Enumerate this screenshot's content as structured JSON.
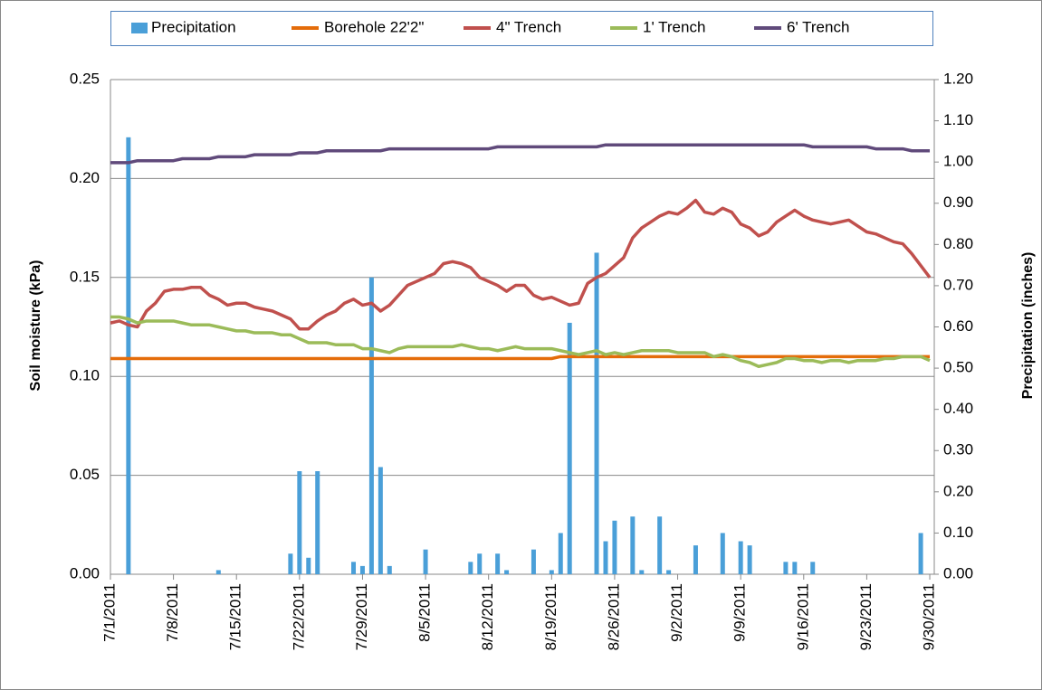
{
  "chart_data": {
    "type": "combo",
    "y_label": "Soil moisture (kPa)",
    "y2_label": "Precipitation (inches)",
    "categories": [
      "7/1/2011",
      null,
      null,
      null,
      null,
      null,
      null,
      "7/8/2011",
      null,
      null,
      null,
      null,
      null,
      null,
      "7/15/2011",
      null,
      null,
      null,
      null,
      null,
      null,
      "7/22/2011",
      null,
      null,
      null,
      null,
      null,
      null,
      "7/29/2011",
      null,
      null,
      null,
      null,
      null,
      null,
      "8/5/2011",
      null,
      null,
      null,
      null,
      null,
      null,
      "8/12/2011",
      null,
      null,
      null,
      null,
      null,
      null,
      "8/19/2011",
      null,
      null,
      null,
      null,
      null,
      null,
      "8/26/2011",
      null,
      null,
      null,
      null,
      null,
      null,
      "9/2/2011",
      null,
      null,
      null,
      null,
      null,
      null,
      "9/9/2011",
      null,
      null,
      null,
      null,
      null,
      null,
      "9/16/2011",
      null,
      null,
      null,
      null,
      null,
      null,
      "9/23/2011",
      null,
      null,
      null,
      null,
      null,
      null,
      "9/30/2011"
    ],
    "ylim": [
      0,
      0.25
    ],
    "yticks": [
      {
        "value": 0,
        "label": "0.00"
      },
      {
        "value": 0.05,
        "label": "0.05"
      },
      {
        "value": 0.1,
        "label": "0.10"
      },
      {
        "value": 0.15,
        "label": "0.15"
      },
      {
        "value": 0.2,
        "label": "0.20"
      },
      {
        "value": 0.25,
        "label": "0.25"
      }
    ],
    "y2lim": [
      0,
      1.2
    ],
    "y2ticks": [
      {
        "value": 0,
        "label": "0.00"
      },
      {
        "value": 0.1,
        "label": "0.10"
      },
      {
        "value": 0.2,
        "label": "0.20"
      },
      {
        "value": 0.3,
        "label": "0.30"
      },
      {
        "value": 0.4,
        "label": "0.40"
      },
      {
        "value": 0.5,
        "label": "0.50"
      },
      {
        "value": 0.6,
        "label": "0.60"
      },
      {
        "value": 0.7,
        "label": "0.70"
      },
      {
        "value": 0.8,
        "label": "0.80"
      },
      {
        "value": 0.9,
        "label": "0.90"
      },
      {
        "value": 1,
        "label": "1.00"
      },
      {
        "value": 1.1,
        "label": "1.10"
      },
      {
        "value": 1.2,
        "label": "1.20"
      }
    ],
    "grid": true,
    "legend": "top",
    "series": [
      {
        "name": "Precipitation",
        "type": "bar",
        "axis": "y2",
        "color": "#4a9fd8",
        "values": [
          0,
          0,
          1.06,
          0,
          0,
          0,
          0,
          0,
          0,
          0,
          0,
          0,
          0.01,
          0,
          0,
          0,
          0,
          0,
          0,
          0,
          0.05,
          0.25,
          0.04,
          0.25,
          0,
          0,
          0,
          0.03,
          0.02,
          0.72,
          0.26,
          0.02,
          0,
          0,
          0,
          0.06,
          0,
          0,
          0,
          0,
          0.03,
          0.05,
          0,
          0.05,
          0.01,
          0,
          0,
          0.06,
          0,
          0.01,
          0.1,
          0.61,
          0,
          0,
          0.78,
          0.08,
          0.13,
          0,
          0.14,
          0.01,
          0,
          0.14,
          0.01,
          0,
          0,
          0.07,
          0,
          0,
          0.1,
          0,
          0.08,
          0.07,
          0,
          0,
          0,
          0.03,
          0.03,
          0,
          0.03,
          0,
          0,
          0,
          0,
          0,
          0,
          0,
          0,
          0,
          0,
          0,
          0.1,
          0
        ]
      },
      {
        "name": "Borehole 22'2\"",
        "type": "line",
        "color": "#e46c0a",
        "values": [
          0.109,
          0.109,
          0.109,
          0.109,
          0.109,
          0.109,
          0.109,
          0.109,
          0.109,
          0.109,
          0.109,
          0.109,
          0.109,
          0.109,
          0.109,
          0.109,
          0.109,
          0.109,
          0.109,
          0.109,
          0.109,
          0.109,
          0.109,
          0.109,
          0.109,
          0.109,
          0.109,
          0.109,
          0.109,
          0.109,
          0.109,
          0.109,
          0.109,
          0.109,
          0.109,
          0.109,
          0.109,
          0.109,
          0.109,
          0.109,
          0.109,
          0.109,
          0.109,
          0.109,
          0.109,
          0.109,
          0.109,
          0.109,
          0.109,
          0.109,
          0.11,
          0.11,
          0.11,
          0.11,
          0.11,
          0.11,
          0.11,
          0.11,
          0.11,
          0.11,
          0.11,
          0.11,
          0.11,
          0.11,
          0.11,
          0.11,
          0.11,
          0.11,
          0.11,
          0.11,
          0.11,
          0.11,
          0.11,
          0.11,
          0.11,
          0.11,
          0.11,
          0.11,
          0.11,
          0.11,
          0.11,
          0.11,
          0.11,
          0.11,
          0.11,
          0.11,
          0.11,
          0.11,
          0.11,
          0.11,
          0.11,
          0.11
        ]
      },
      {
        "name": "4\" Trench",
        "type": "line",
        "color": "#c0504d",
        "values": [
          0.127,
          0.128,
          0.126,
          0.125,
          0.133,
          0.137,
          0.143,
          0.144,
          0.144,
          0.145,
          0.145,
          0.141,
          0.139,
          0.136,
          0.137,
          0.137,
          0.135,
          0.134,
          0.133,
          0.131,
          0.129,
          0.124,
          0.124,
          0.128,
          0.131,
          0.133,
          0.137,
          0.139,
          0.136,
          0.137,
          0.133,
          0.136,
          0.141,
          0.146,
          0.148,
          0.15,
          0.152,
          0.157,
          0.158,
          0.157,
          0.155,
          0.15,
          0.148,
          0.146,
          0.143,
          0.146,
          0.146,
          0.141,
          0.139,
          0.14,
          0.138,
          0.136,
          0.137,
          0.147,
          0.15,
          0.152,
          0.156,
          0.16,
          0.17,
          0.175,
          0.178,
          0.181,
          0.183,
          0.182,
          0.185,
          0.189,
          0.183,
          0.182,
          0.185,
          0.183,
          0.177,
          0.175,
          0.171,
          0.173,
          0.178,
          0.181,
          0.184,
          0.181,
          0.179,
          0.178,
          0.177,
          0.178,
          0.179,
          0.176,
          0.173,
          0.172,
          0.17,
          0.168,
          0.167,
          0.162,
          0.156,
          0.15
        ]
      },
      {
        "name": "1' Trench",
        "type": "line",
        "color": "#9bbb59",
        "values": [
          0.13,
          0.13,
          0.129,
          0.127,
          0.128,
          0.128,
          0.128,
          0.128,
          0.127,
          0.126,
          0.126,
          0.126,
          0.125,
          0.124,
          0.123,
          0.123,
          0.122,
          0.122,
          0.122,
          0.121,
          0.121,
          0.119,
          0.117,
          0.117,
          0.117,
          0.116,
          0.116,
          0.116,
          0.114,
          0.114,
          0.113,
          0.112,
          0.114,
          0.115,
          0.115,
          0.115,
          0.115,
          0.115,
          0.115,
          0.116,
          0.115,
          0.114,
          0.114,
          0.113,
          0.114,
          0.115,
          0.114,
          0.114,
          0.114,
          0.114,
          0.113,
          0.112,
          0.111,
          0.112,
          0.113,
          0.111,
          0.112,
          0.111,
          0.112,
          0.113,
          0.113,
          0.113,
          0.113,
          0.112,
          0.112,
          0.112,
          0.112,
          0.11,
          0.111,
          0.11,
          0.108,
          0.107,
          0.105,
          0.106,
          0.107,
          0.109,
          0.109,
          0.108,
          0.108,
          0.107,
          0.108,
          0.108,
          0.107,
          0.108,
          0.108,
          0.108,
          0.109,
          0.109,
          0.11,
          0.11,
          0.11,
          0.108
        ]
      },
      {
        "name": "6' Trench",
        "type": "line",
        "color": "#604a7b",
        "values": [
          0.208,
          0.208,
          0.208,
          0.209,
          0.209,
          0.209,
          0.209,
          0.209,
          0.21,
          0.21,
          0.21,
          0.21,
          0.211,
          0.211,
          0.211,
          0.211,
          0.212,
          0.212,
          0.212,
          0.212,
          0.212,
          0.213,
          0.213,
          0.213,
          0.214,
          0.214,
          0.214,
          0.214,
          0.214,
          0.214,
          0.214,
          0.215,
          0.215,
          0.215,
          0.215,
          0.215,
          0.215,
          0.215,
          0.215,
          0.215,
          0.215,
          0.215,
          0.215,
          0.216,
          0.216,
          0.216,
          0.216,
          0.216,
          0.216,
          0.216,
          0.216,
          0.216,
          0.216,
          0.216,
          0.216,
          0.217,
          0.217,
          0.217,
          0.217,
          0.217,
          0.217,
          0.217,
          0.217,
          0.217,
          0.217,
          0.217,
          0.217,
          0.217,
          0.217,
          0.217,
          0.217,
          0.217,
          0.217,
          0.217,
          0.217,
          0.217,
          0.217,
          0.217,
          0.216,
          0.216,
          0.216,
          0.216,
          0.216,
          0.216,
          0.216,
          0.215,
          0.215,
          0.215,
          0.215,
          0.214,
          0.214,
          0.214
        ]
      }
    ]
  }
}
